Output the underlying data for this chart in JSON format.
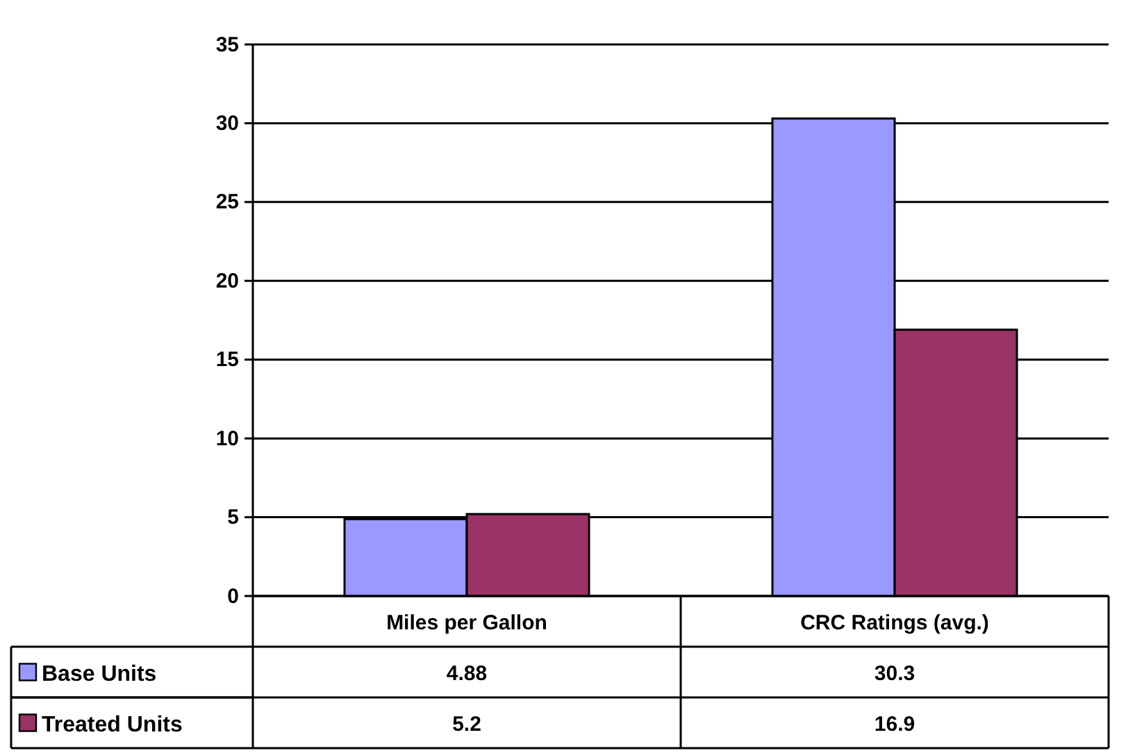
{
  "chart_data": {
    "type": "bar",
    "categories": [
      "Miles per Gallon",
      "CRC Ratings (avg.)"
    ],
    "series": [
      {
        "name": "Base Units",
        "color": "#9999ff",
        "values": [
          4.88,
          30.3
        ]
      },
      {
        "name": "Treated Units",
        "color": "#993366",
        "values": [
          5.2,
          16.9
        ]
      }
    ],
    "ylim": [
      0,
      35
    ],
    "yticks": [
      0,
      5,
      10,
      15,
      20,
      25,
      30,
      35
    ],
    "grid": "y",
    "legend": "bottom left",
    "data_labels": true
  }
}
